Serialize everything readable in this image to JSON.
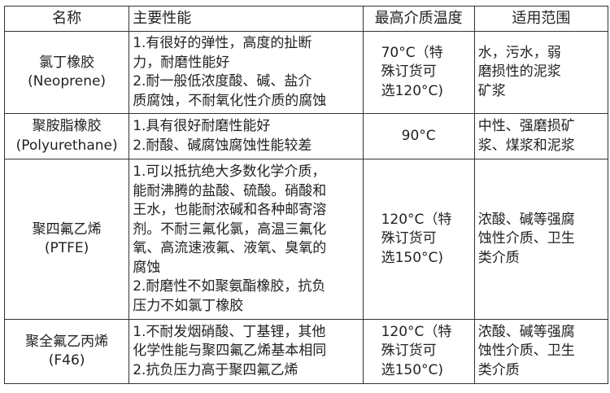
{
  "headers": [
    "名称",
    "主要性能",
    "最高介质温度",
    "适用范围"
  ],
  "rows": [
    {
      "name": [
        "氯丁橡胶",
        "(Neoprene)"
      ],
      "performance": [
        "1.有很好的弹性，高度的扯断",
        "力，耐磨性能好",
        "2.耐一般低浓度酸、碱、盐介",
        "质腐蚀，不耐氧化性介质的腐蚀"
      ],
      "temperature": [
        "70°C（特",
        "殊订货可",
        "选120°C)"
      ],
      "application": [
        "水，污水，弱",
        "磨损性的泥浆",
        "矿浆"
      ]
    },
    {
      "name": [
        "聚胺脂橡胶",
        "(Polyurethane)"
      ],
      "performance": [
        "1.具有很好耐磨性能好",
        "2.耐酸、碱腐蚀腐蚀性能较差"
      ],
      "temperature": [
        "90°C"
      ],
      "application": [
        "中性、强磨损矿",
        "浆、煤浆和泥浆"
      ]
    },
    {
      "name": [
        "聚四氟乙烯",
        "(PTFE)"
      ],
      "performance": [
        "1.可以抵抗绝大多数化学介质，",
        "能耐沸腾的盐酸、硫酸。硝酸和",
        "王水，也能耐浓碱和各种邮寄溶",
        "剂。不耐三氟化氯，高温三氟化",
        "氧、高流速液氟、液氧、臭氧的",
        "腐蚀",
        "2.耐磨性不如聚氨酯橡胶，抗负",
        "压力不如氯丁橡胶"
      ],
      "temperature": [
        "120°C（特",
        "殊订货可",
        "选150°C)"
      ],
      "application": [
        "浓酸、碱等强腐",
        "蚀性介质、卫生",
        "类介质"
      ]
    },
    {
      "name": [
        "聚全氟乙丙烯",
        "(F46)"
      ],
      "performance": [
        "1.不耐发烟硝酸、丁基锂，其他",
        "化学性能与聚四氟乙烯基本相同",
        "2.抗负压力高于聚四氟乙烯"
      ],
      "temperature": [
        "120°C（特",
        "殊订货可",
        "选150°C)"
      ],
      "application": [
        "浓酸、碱等强腐",
        "蚀性介质、卫生",
        "类介质"
      ]
    }
  ]
}
